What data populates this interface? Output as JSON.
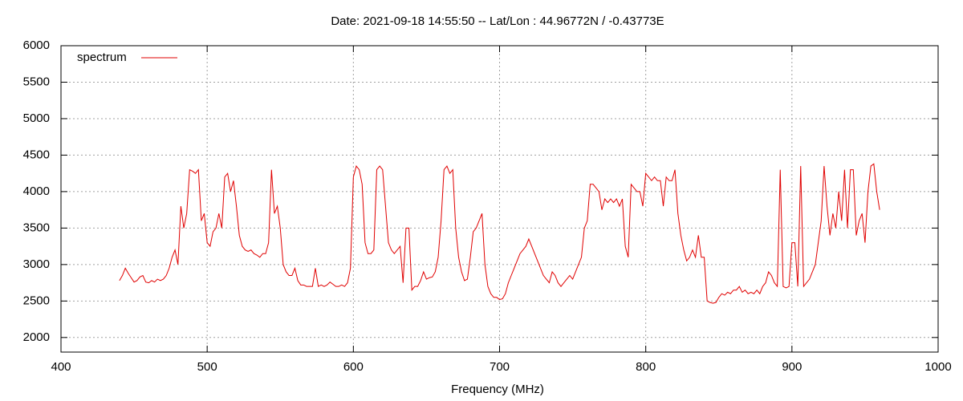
{
  "chart_data": {
    "type": "line",
    "title": "Date: 2021-09-18 14:55:50  --  Lat/Lon : 44.96772N / -0.43773E",
    "x_label": "Frequency (MHz)",
    "xlim": [
      400,
      1000
    ],
    "xticks": [
      400,
      500,
      600,
      700,
      800,
      900,
      1000
    ],
    "ylim": [
      1800,
      6000
    ],
    "yticks": [
      2000,
      2500,
      3000,
      3500,
      4000,
      4500,
      5000,
      5500,
      6000
    ],
    "grid": true,
    "legend": "top-left",
    "x": [
      440,
      442,
      444,
      446,
      448,
      450,
      452,
      454,
      456,
      458,
      460,
      462,
      464,
      466,
      468,
      470,
      472,
      474,
      476,
      478,
      480,
      482,
      484,
      486,
      488,
      490,
      492,
      494,
      496,
      498,
      500,
      502,
      504,
      506,
      508,
      510,
      512,
      514,
      516,
      518,
      520,
      522,
      524,
      526,
      528,
      530,
      532,
      534,
      536,
      538,
      540,
      542,
      544,
      546,
      548,
      550,
      552,
      554,
      556,
      558,
      560,
      562,
      564,
      566,
      568,
      570,
      572,
      574,
      576,
      578,
      580,
      582,
      584,
      586,
      588,
      590,
      592,
      594,
      596,
      598,
      600,
      602,
      604,
      606,
      608,
      610,
      612,
      614,
      616,
      618,
      620,
      622,
      624,
      626,
      628,
      630,
      632,
      634,
      636,
      638,
      640,
      642,
      644,
      646,
      648,
      650,
      652,
      654,
      656,
      658,
      660,
      662,
      664,
      666,
      668,
      670,
      672,
      674,
      676,
      678,
      680,
      682,
      684,
      686,
      688,
      690,
      692,
      694,
      696,
      698,
      700,
      702,
      704,
      706,
      708,
      710,
      712,
      714,
      716,
      718,
      720,
      722,
      724,
      726,
      728,
      730,
      732,
      734,
      736,
      738,
      740,
      742,
      744,
      746,
      748,
      750,
      752,
      754,
      756,
      758,
      760,
      762,
      764,
      766,
      768,
      770,
      772,
      774,
      776,
      778,
      780,
      782,
      784,
      786,
      788,
      790,
      792,
      794,
      796,
      798,
      800,
      802,
      804,
      806,
      808,
      810,
      812,
      814,
      816,
      818,
      820,
      822,
      824,
      826,
      828,
      830,
      832,
      834,
      836,
      838,
      840,
      842,
      844,
      846,
      848,
      850,
      852,
      854,
      856,
      858,
      860,
      862,
      864,
      866,
      868,
      870,
      872,
      874,
      876,
      878,
      880,
      882,
      884,
      886,
      888,
      890,
      892,
      894,
      896,
      898,
      900,
      902,
      904,
      906,
      908,
      910,
      912,
      914,
      916,
      918,
      920,
      922,
      924,
      926,
      928,
      930,
      932,
      934,
      936,
      938,
      940,
      942,
      944,
      946,
      948,
      950,
      952,
      954,
      956,
      958,
      960
    ],
    "series": [
      {
        "name": "spectrum",
        "color": "#e00000",
        "values": [
          2780,
          2850,
          2950,
          2880,
          2820,
          2760,
          2780,
          2830,
          2850,
          2760,
          2750,
          2780,
          2760,
          2800,
          2780,
          2800,
          2850,
          2950,
          3100,
          3200,
          3000,
          3800,
          3500,
          3700,
          4300,
          4280,
          4250,
          4300,
          3600,
          3700,
          3300,
          3250,
          3450,
          3500,
          3700,
          3500,
          4200,
          4250,
          4000,
          4150,
          3800,
          3400,
          3250,
          3200,
          3180,
          3200,
          3150,
          3130,
          3100,
          3150,
          3150,
          3300,
          4300,
          3700,
          3800,
          3500,
          3000,
          2900,
          2850,
          2850,
          2950,
          2780,
          2720,
          2720,
          2700,
          2700,
          2700,
          2950,
          2700,
          2720,
          2700,
          2720,
          2760,
          2730,
          2700,
          2700,
          2720,
          2700,
          2750,
          2950,
          4200,
          4350,
          4300,
          4100,
          3300,
          3150,
          3150,
          3200,
          4300,
          4350,
          4300,
          3800,
          3300,
          3200,
          3150,
          3200,
          3250,
          2750,
          3500,
          3500,
          2650,
          2700,
          2700,
          2780,
          2900,
          2800,
          2820,
          2830,
          2900,
          3100,
          3600,
          4300,
          4350,
          4250,
          4300,
          3500,
          3100,
          2900,
          2780,
          2800,
          3100,
          3450,
          3500,
          3600,
          3700,
          3000,
          2700,
          2600,
          2550,
          2550,
          2520,
          2530,
          2600,
          2750,
          2850,
          2950,
          3050,
          3150,
          3200,
          3250,
          3350,
          3250,
          3150,
          3050,
          2950,
          2850,
          2800,
          2750,
          2900,
          2850,
          2750,
          2700,
          2750,
          2800,
          2850,
          2800,
          2900,
          3000,
          3100,
          3500,
          3600,
          4100,
          4100,
          4050,
          4000,
          3750,
          3900,
          3850,
          3900,
          3850,
          3900,
          3800,
          3900,
          3250,
          3100,
          4100,
          4050,
          4000,
          4000,
          3800,
          4250,
          4200,
          4150,
          4200,
          4150,
          4150,
          3800,
          4200,
          4150,
          4150,
          4300,
          3700,
          3400,
          3200,
          3050,
          3100,
          3200,
          3100,
          3400,
          3100,
          3100,
          2500,
          2480,
          2470,
          2480,
          2550,
          2600,
          2580,
          2620,
          2600,
          2650,
          2650,
          2700,
          2620,
          2650,
          2600,
          2620,
          2600,
          2650,
          2600,
          2700,
          2750,
          2900,
          2850,
          2750,
          2700,
          4300,
          2700,
          2680,
          2700,
          3300,
          3300,
          2700,
          4350,
          2700,
          2750,
          2800,
          2900,
          3000,
          3300,
          3600,
          4350,
          3800,
          3400,
          3700,
          3500,
          4000,
          3600,
          4300,
          3500,
          4300,
          4300,
          3400,
          3600,
          3700,
          3300,
          4000,
          4350,
          4380,
          4000,
          3750
        ]
      }
    ]
  }
}
